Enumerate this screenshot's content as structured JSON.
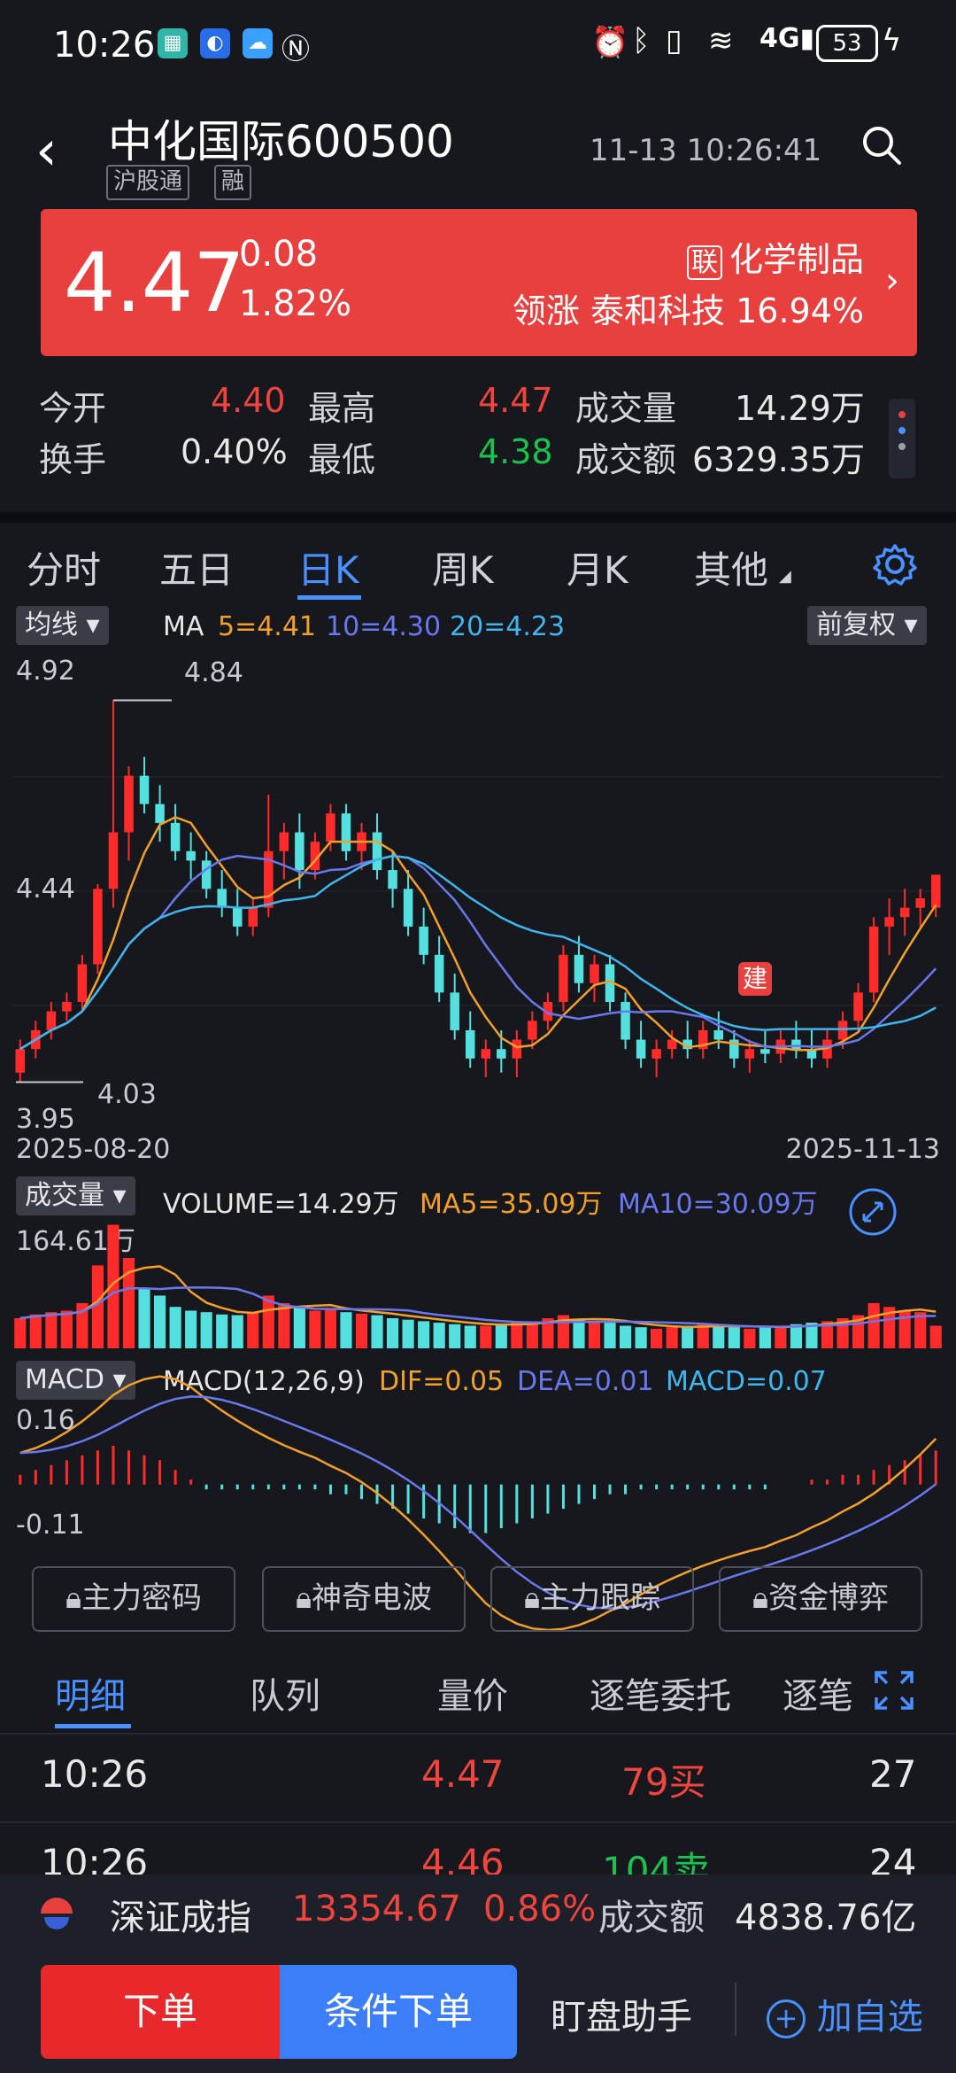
{
  "status_bar": {
    "time": "10:26",
    "battery": "53"
  },
  "header": {
    "stock_name": "中化国际",
    "stock_code": "600500",
    "tags": [
      "沪股通",
      "融"
    ],
    "datetime": "11-13 10:26:41"
  },
  "quote": {
    "price": "4.47",
    "change": "0.08",
    "change_pct": "1.82%",
    "sector_tag": "联",
    "sector": "化学制品",
    "lead_label": "领涨",
    "lead_stock": "泰和科技",
    "lead_pct": "16.94%",
    "colors": {
      "card": "#e8403e"
    }
  },
  "stats": {
    "open_label": "今开",
    "open": "4.40",
    "high_label": "最高",
    "high": "4.47",
    "volume_label": "成交量",
    "volume": "14.29万",
    "turnover_label": "换手",
    "turnover": "0.40%",
    "low_label": "最低",
    "low": "4.38",
    "amount_label": "成交额",
    "amount": "6329.35万"
  },
  "chart_tabs": [
    "分时",
    "五日",
    "日K",
    "周K",
    "月K",
    "其他"
  ],
  "active_chart_tab": "日K",
  "kline": {
    "ma_selector": "均线",
    "ma_label": "MA",
    "ma5": "5=4.41",
    "ma10": "10=4.30",
    "ma20": "20=4.23",
    "adjust": "前复权",
    "y_top": "4.92",
    "y_mid": "4.44",
    "y_bottom": "3.95",
    "max_label": "4.84",
    "min_label": "4.03",
    "date_start": "2025-08-20",
    "date_end": "2025-11-13",
    "marker": "建"
  },
  "volume": {
    "selector": "成交量",
    "vol_label": "VOLUME=14.29万",
    "ma5_label": "MA5=35.09万",
    "ma10_label": "MA10=30.09万",
    "y_max": "164.61万"
  },
  "macd": {
    "selector": "MACD",
    "params": "MACD(12,26,9)",
    "dif": "DIF=0.05",
    "dea": "DEA=0.01",
    "macd_val": "MACD=0.07",
    "y_top": "0.16",
    "y_bottom": "-0.11"
  },
  "chart_data": {
    "type": "candlestick",
    "ylim": [
      3.95,
      4.92
    ],
    "start_date": "2025-08-20",
    "end_date": "2025-11-13",
    "series_note": "daily OHLC approx",
    "candles": [
      [
        4.05,
        4.12,
        4.03,
        4.1
      ],
      [
        4.1,
        4.16,
        4.08,
        4.14
      ],
      [
        4.14,
        4.2,
        4.12,
        4.18
      ],
      [
        4.18,
        4.22,
        4.16,
        4.2
      ],
      [
        4.2,
        4.3,
        4.18,
        4.28
      ],
      [
        4.28,
        4.45,
        4.26,
        4.44
      ],
      [
        4.44,
        4.84,
        4.4,
        4.56
      ],
      [
        4.56,
        4.7,
        4.5,
        4.68
      ],
      [
        4.68,
        4.72,
        4.6,
        4.62
      ],
      [
        4.62,
        4.66,
        4.54,
        4.58
      ],
      [
        4.58,
        4.62,
        4.5,
        4.52
      ],
      [
        4.52,
        4.56,
        4.46,
        4.5
      ],
      [
        4.5,
        4.52,
        4.42,
        4.44
      ],
      [
        4.44,
        4.48,
        4.38,
        4.4
      ],
      [
        4.4,
        4.44,
        4.34,
        4.36
      ],
      [
        4.36,
        4.42,
        4.34,
        4.4
      ],
      [
        4.4,
        4.64,
        4.38,
        4.52
      ],
      [
        4.52,
        4.58,
        4.46,
        4.56
      ],
      [
        4.56,
        4.6,
        4.44,
        4.48
      ],
      [
        4.48,
        4.56,
        4.46,
        4.54
      ],
      [
        4.54,
        4.62,
        4.52,
        4.6
      ],
      [
        4.6,
        4.62,
        4.5,
        4.52
      ],
      [
        4.52,
        4.58,
        4.48,
        4.56
      ],
      [
        4.56,
        4.6,
        4.46,
        4.48
      ],
      [
        4.48,
        4.52,
        4.4,
        4.44
      ],
      [
        4.44,
        4.48,
        4.34,
        4.36
      ],
      [
        4.36,
        4.4,
        4.28,
        4.3
      ],
      [
        4.3,
        4.34,
        4.2,
        4.22
      ],
      [
        4.22,
        4.26,
        4.12,
        4.14
      ],
      [
        4.14,
        4.18,
        4.06,
        4.08
      ],
      [
        4.08,
        4.12,
        4.04,
        4.1
      ],
      [
        4.1,
        4.14,
        4.05,
        4.08
      ],
      [
        4.08,
        4.14,
        4.04,
        4.12
      ],
      [
        4.12,
        4.18,
        4.1,
        4.16
      ],
      [
        4.16,
        4.22,
        4.14,
        4.2
      ],
      [
        4.2,
        4.32,
        4.18,
        4.3
      ],
      [
        4.3,
        4.34,
        4.22,
        4.24
      ],
      [
        4.24,
        4.3,
        4.2,
        4.28
      ],
      [
        4.28,
        4.3,
        4.18,
        4.2
      ],
      [
        4.2,
        4.22,
        4.1,
        4.12
      ],
      [
        4.12,
        4.16,
        4.06,
        4.08
      ],
      [
        4.08,
        4.12,
        4.04,
        4.1
      ],
      [
        4.1,
        4.14,
        4.08,
        4.12
      ],
      [
        4.12,
        4.16,
        4.08,
        4.1
      ],
      [
        4.1,
        4.16,
        4.08,
        4.14
      ],
      [
        4.14,
        4.18,
        4.1,
        4.12
      ],
      [
        4.12,
        4.14,
        4.06,
        4.08
      ],
      [
        4.08,
        4.12,
        4.05,
        4.1
      ],
      [
        4.1,
        4.14,
        4.07,
        4.09
      ],
      [
        4.09,
        4.14,
        4.07,
        4.12
      ],
      [
        4.12,
        4.16,
        4.08,
        4.1
      ],
      [
        4.1,
        4.14,
        4.06,
        4.08
      ],
      [
        4.08,
        4.14,
        4.06,
        4.12
      ],
      [
        4.12,
        4.18,
        4.1,
        4.16
      ],
      [
        4.16,
        4.24,
        4.14,
        4.22
      ],
      [
        4.22,
        4.38,
        4.2,
        4.36
      ],
      [
        4.36,
        4.42,
        4.3,
        4.38
      ],
      [
        4.38,
        4.44,
        4.34,
        4.4
      ],
      [
        4.4,
        4.44,
        4.36,
        4.42
      ],
      [
        4.4,
        4.47,
        4.38,
        4.47
      ]
    ],
    "volume": {
      "y_max": 164.61,
      "values": [
        40,
        45,
        48,
        50,
        60,
        110,
        164,
        120,
        80,
        70,
        55,
        50,
        48,
        45,
        44,
        48,
        70,
        60,
        55,
        50,
        52,
        48,
        46,
        44,
        40,
        38,
        36,
        34,
        32,
        30,
        30,
        32,
        34,
        36,
        40,
        44,
        38,
        36,
        34,
        30,
        28,
        26,
        28,
        30,
        32,
        30,
        28,
        26,
        28,
        30,
        32,
        34,
        36,
        40,
        44,
        60,
        55,
        50,
        48,
        30
      ],
      "up": [
        1,
        1,
        1,
        1,
        1,
        1,
        1,
        1,
        0,
        0,
        0,
        0,
        0,
        0,
        0,
        1,
        1,
        1,
        0,
        1,
        1,
        0,
        1,
        0,
        0,
        0,
        0,
        0,
        0,
        0,
        1,
        0,
        1,
        1,
        1,
        1,
        0,
        1,
        0,
        0,
        0,
        1,
        1,
        0,
        1,
        0,
        0,
        1,
        0,
        1,
        0,
        0,
        1,
        1,
        1,
        1,
        1,
        1,
        1,
        1
      ]
    },
    "macd": {
      "ylim": [
        -0.11,
        0.16
      ],
      "hist": [
        0.02,
        0.03,
        0.04,
        0.05,
        0.06,
        0.07,
        0.08,
        0.07,
        0.06,
        0.05,
        0.03,
        0.01,
        -0.01,
        -0.01,
        -0.01,
        -0.01,
        -0.01,
        -0.01,
        -0.01,
        -0.01,
        -0.02,
        -0.02,
        -0.03,
        -0.04,
        -0.05,
        -0.06,
        -0.07,
        -0.08,
        -0.09,
        -0.1,
        -0.1,
        -0.09,
        -0.08,
        -0.07,
        -0.06,
        -0.05,
        -0.04,
        -0.03,
        -0.02,
        -0.02,
        -0.01,
        -0.01,
        -0.01,
        -0.01,
        -0.01,
        -0.01,
        -0.01,
        -0.01,
        -0.01,
        0.0,
        0.0,
        0.01,
        0.01,
        0.02,
        0.02,
        0.03,
        0.04,
        0.05,
        0.06,
        0.07
      ]
    }
  },
  "lock_buttons": [
    "主力密码",
    "神奇电波",
    "主力跟踪",
    "资金博弈"
  ],
  "detail_tabs": [
    "明细",
    "队列",
    "量价",
    "逐笔委托",
    "逐笔"
  ],
  "details": [
    {
      "time": "10:26",
      "price": "4.47",
      "qty": "79买",
      "count": "27"
    },
    {
      "time": "10:26",
      "price": "4.46",
      "qty": "104卖",
      "count": "24"
    }
  ],
  "index_ticker": {
    "name": "深证成指",
    "value": "13354.67",
    "pct": "0.86%",
    "amount_label": "成交额",
    "amount": "4838.76亿"
  },
  "bottom": {
    "order": "下单",
    "cond_order": "条件下单",
    "helper": "盯盘助手",
    "add_fav": "加自选"
  }
}
